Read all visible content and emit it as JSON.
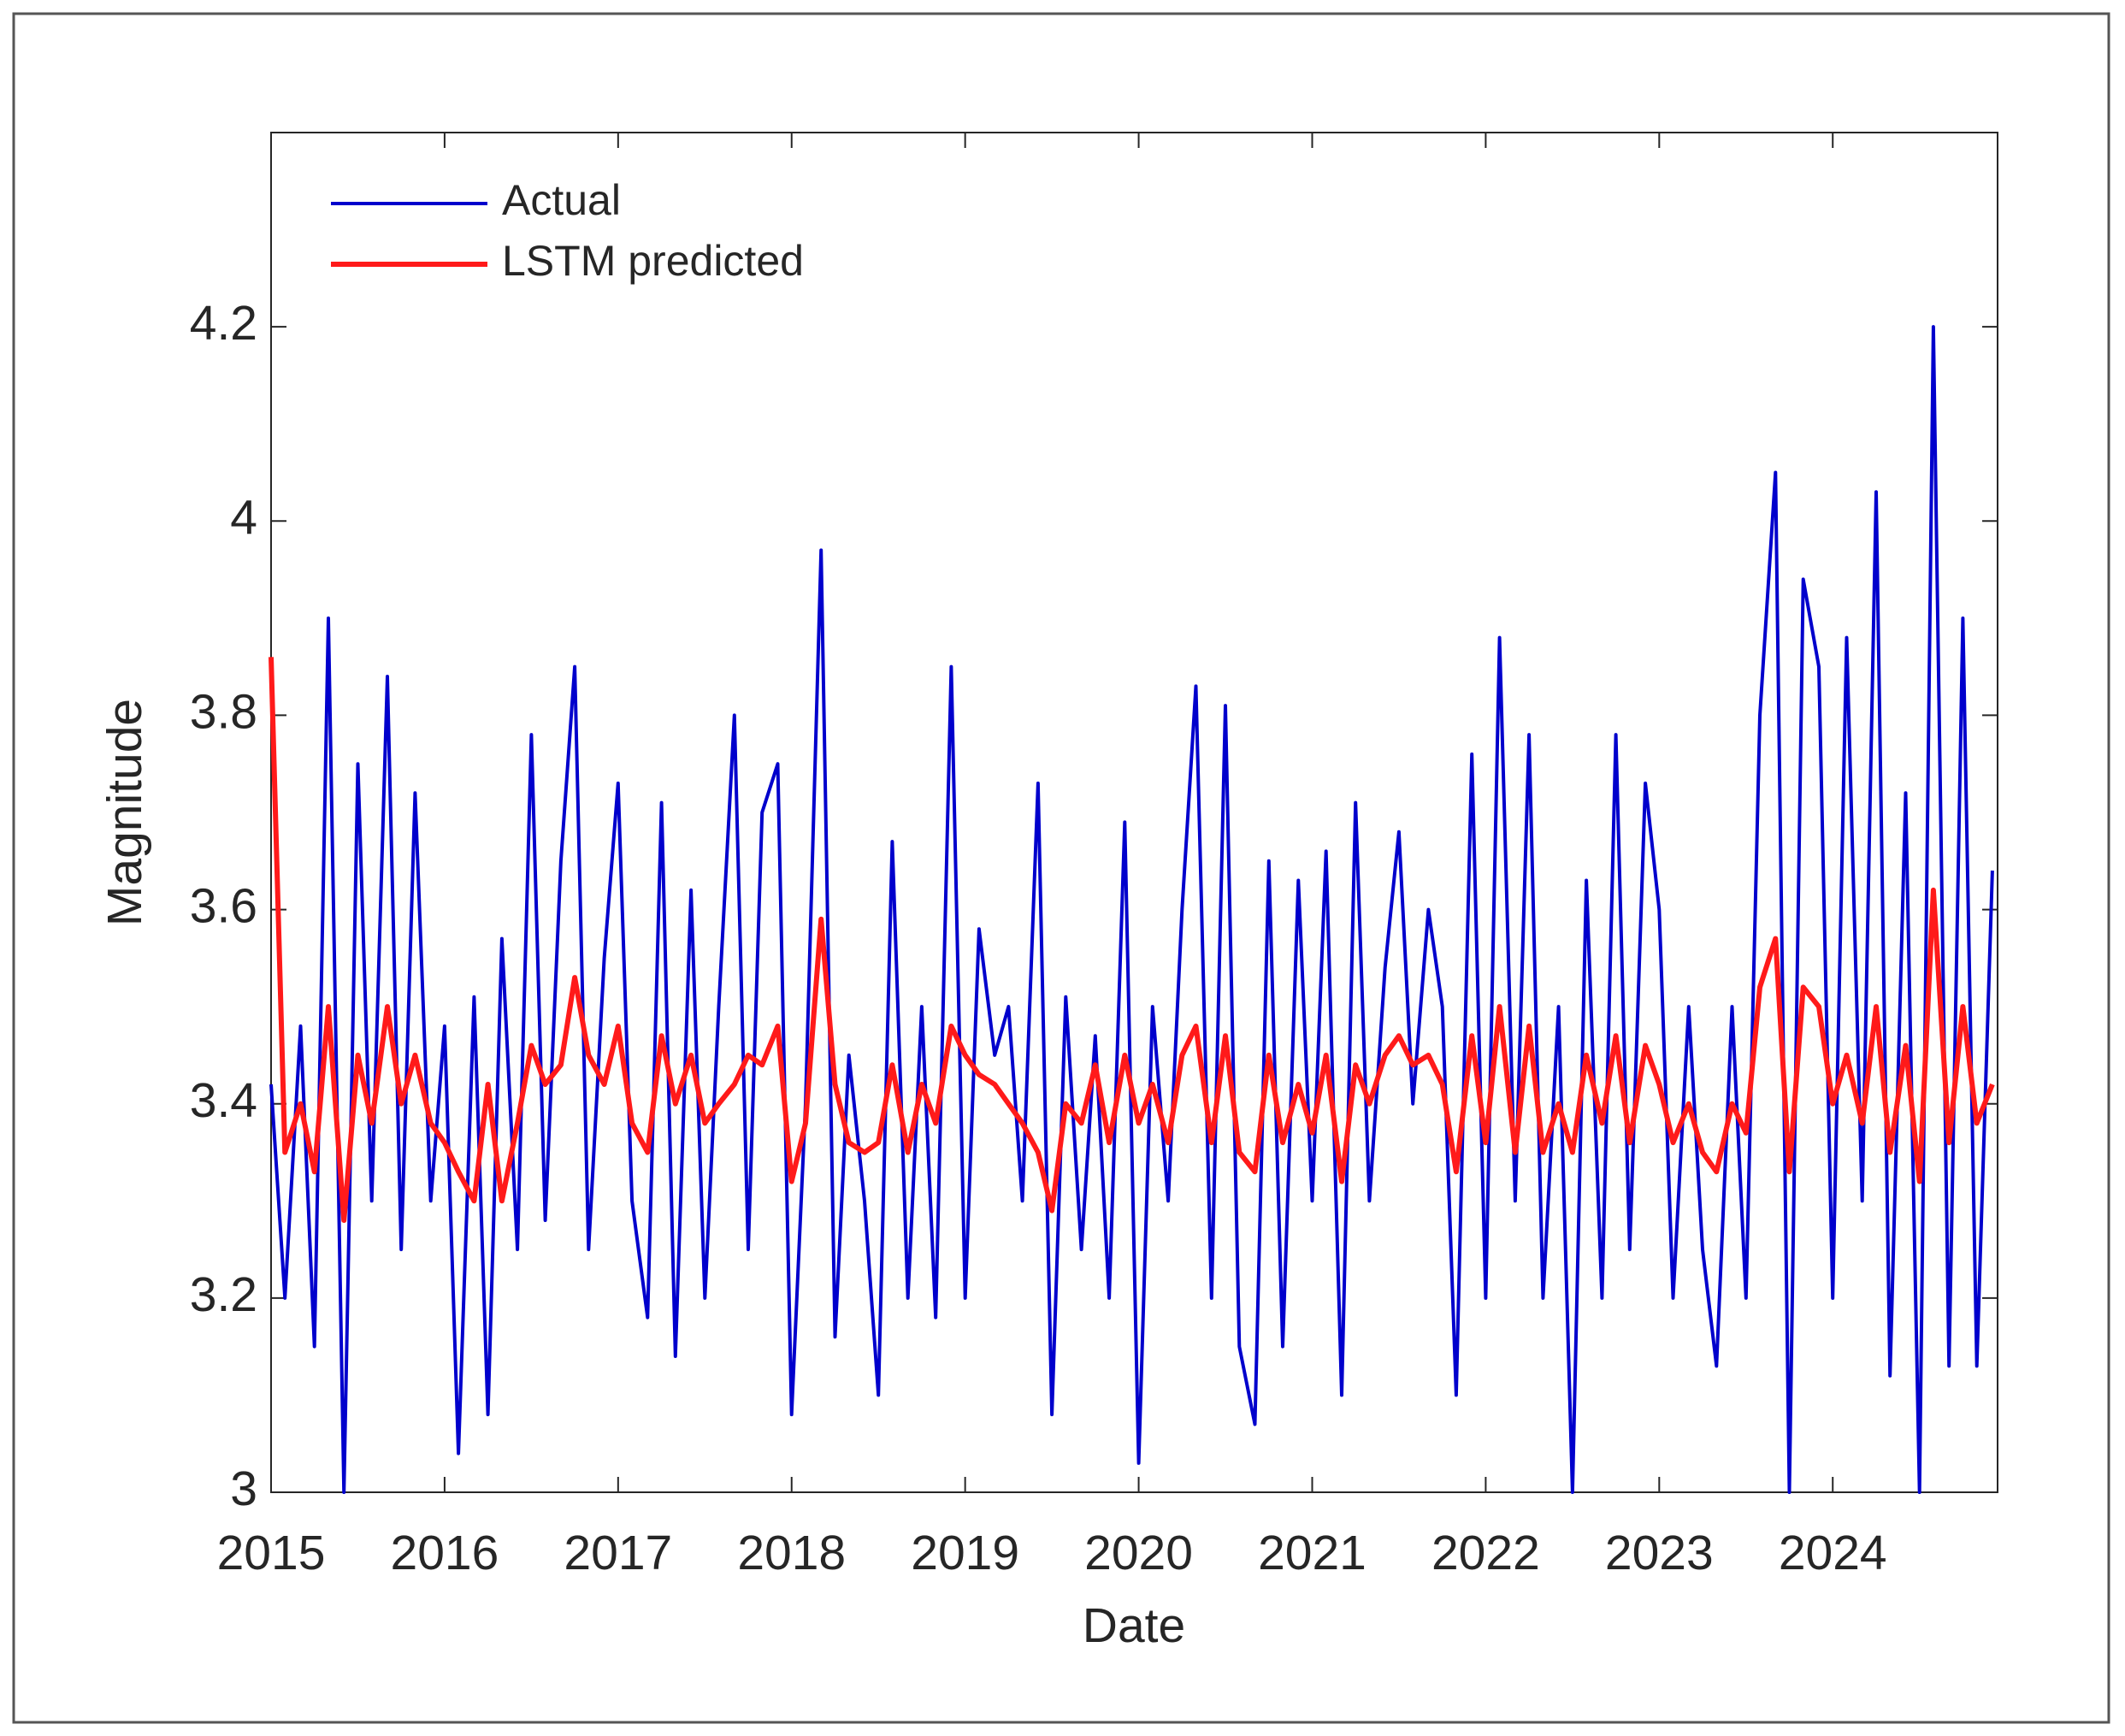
{
  "chart_data": {
    "type": "line",
    "xlabel": "Date",
    "ylabel": "Magnitude",
    "x": [
      2015,
      2015.08,
      2015.17,
      2015.25,
      2015.33,
      2015.42,
      2015.5,
      2015.58,
      2015.67,
      2015.75,
      2015.83,
      2015.92,
      2016,
      2016.08,
      2016.17,
      2016.25,
      2016.33,
      2016.42,
      2016.5,
      2016.58,
      2016.67,
      2016.75,
      2016.83,
      2016.92,
      2017,
      2017.08,
      2017.17,
      2017.25,
      2017.33,
      2017.42,
      2017.5,
      2017.58,
      2017.67,
      2017.75,
      2017.83,
      2017.92,
      2018,
      2018.08,
      2018.17,
      2018.25,
      2018.33,
      2018.42,
      2018.5,
      2018.58,
      2018.67,
      2018.75,
      2018.83,
      2018.92,
      2019,
      2019.08,
      2019.17,
      2019.25,
      2019.33,
      2019.42,
      2019.5,
      2019.58,
      2019.67,
      2019.75,
      2019.83,
      2019.92,
      2020,
      2020.08,
      2020.17,
      2020.25,
      2020.33,
      2020.42,
      2020.5,
      2020.58,
      2020.67,
      2020.75,
      2020.83,
      2020.92,
      2021,
      2021.08,
      2021.17,
      2021.25,
      2021.33,
      2021.42,
      2021.5,
      2021.58,
      2021.67,
      2021.75,
      2021.83,
      2021.92,
      2022,
      2022.08,
      2022.17,
      2022.25,
      2022.33,
      2022.42,
      2022.5,
      2022.58,
      2022.67,
      2022.75,
      2022.83,
      2022.92,
      2023,
      2023.08,
      2023.17,
      2023.25,
      2023.33,
      2023.42,
      2023.5,
      2023.58,
      2023.67,
      2023.75,
      2023.83,
      2023.92,
      2024,
      2024.08,
      2024.17,
      2024.25,
      2024.33,
      2024.42,
      2024.5,
      2024.58,
      2024.67,
      2024.75,
      2024.83,
      2024.92
    ],
    "series": [
      {
        "name": "Actual",
        "color": "#0000cc",
        "values": [
          3.42,
          3.2,
          3.48,
          3.15,
          3.9,
          3.0,
          3.75,
          3.3,
          3.84,
          3.25,
          3.72,
          3.3,
          3.48,
          3.04,
          3.51,
          3.08,
          3.57,
          3.25,
          3.78,
          3.28,
          3.65,
          3.85,
          3.25,
          3.55,
          3.73,
          3.3,
          3.18,
          3.71,
          3.14,
          3.62,
          3.2,
          3.5,
          3.8,
          3.25,
          3.7,
          3.75,
          3.08,
          3.4,
          3.97,
          3.16,
          3.45,
          3.3,
          3.1,
          3.67,
          3.2,
          3.5,
          3.18,
          3.85,
          3.2,
          3.58,
          3.45,
          3.5,
          3.3,
          3.73,
          3.08,
          3.51,
          3.25,
          3.47,
          3.2,
          3.69,
          3.03,
          3.5,
          3.3,
          3.6,
          3.83,
          3.2,
          3.81,
          3.15,
          3.07,
          3.65,
          3.15,
          3.63,
          3.3,
          3.66,
          3.1,
          3.71,
          3.3,
          3.54,
          3.68,
          3.4,
          3.6,
          3.5,
          3.1,
          3.76,
          3.2,
          3.88,
          3.3,
          3.78,
          3.2,
          3.5,
          3.0,
          3.63,
          3.2,
          3.78,
          3.25,
          3.73,
          3.6,
          3.2,
          3.5,
          3.25,
          3.13,
          3.5,
          3.2,
          3.8,
          4.05,
          3.0,
          3.94,
          3.85,
          3.2,
          3.88,
          3.3,
          4.03,
          3.12,
          3.72,
          3.0,
          4.2,
          3.13,
          3.9,
          3.13,
          3.64
        ]
      },
      {
        "name": "LSTM predicted",
        "color": "#ff1a1a",
        "values": [
          3.86,
          3.35,
          3.4,
          3.33,
          3.5,
          3.28,
          3.45,
          3.38,
          3.5,
          3.4,
          3.45,
          3.38,
          3.36,
          3.33,
          3.3,
          3.42,
          3.3,
          3.38,
          3.46,
          3.42,
          3.44,
          3.53,
          3.45,
          3.42,
          3.48,
          3.38,
          3.35,
          3.47,
          3.4,
          3.45,
          3.38,
          3.4,
          3.42,
          3.45,
          3.44,
          3.48,
          3.32,
          3.38,
          3.59,
          3.42,
          3.36,
          3.35,
          3.36,
          3.44,
          3.35,
          3.42,
          3.38,
          3.48,
          3.45,
          3.43,
          3.42,
          3.4,
          3.38,
          3.35,
          3.29,
          3.4,
          3.38,
          3.44,
          3.36,
          3.45,
          3.38,
          3.42,
          3.36,
          3.45,
          3.48,
          3.36,
          3.47,
          3.35,
          3.33,
          3.45,
          3.36,
          3.42,
          3.37,
          3.45,
          3.32,
          3.44,
          3.4,
          3.45,
          3.47,
          3.44,
          3.45,
          3.42,
          3.33,
          3.47,
          3.36,
          3.5,
          3.35,
          3.48,
          3.35,
          3.4,
          3.35,
          3.45,
          3.38,
          3.47,
          3.36,
          3.46,
          3.42,
          3.36,
          3.4,
          3.35,
          3.33,
          3.4,
          3.37,
          3.52,
          3.57,
          3.33,
          3.52,
          3.5,
          3.4,
          3.45,
          3.38,
          3.5,
          3.35,
          3.46,
          3.32,
          3.62,
          3.36,
          3.5,
          3.38,
          3.42
        ]
      }
    ],
    "xlim": [
      2015,
      2024.95
    ],
    "xticks": [
      2015,
      2016,
      2017,
      2018,
      2019,
      2020,
      2021,
      2022,
      2023,
      2024
    ],
    "ylim": [
      3,
      4.4
    ],
    "yticks": [
      3,
      3.2,
      3.4,
      3.6,
      3.8,
      4,
      4.2
    ],
    "grid": false,
    "legend": "upper left"
  }
}
